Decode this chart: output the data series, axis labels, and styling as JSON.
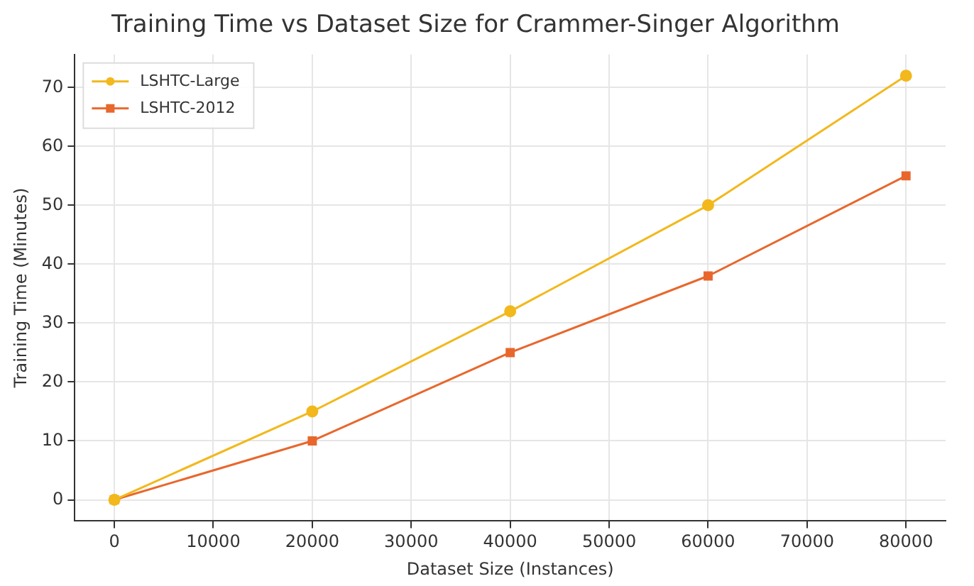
{
  "chart_data": {
    "type": "line",
    "title": "Training Time vs Dataset Size for Crammer-Singer Algorithm",
    "xlabel": "Dataset Size (Instances)",
    "ylabel": "Training Time (Minutes)",
    "x": [
      0,
      20000,
      40000,
      60000,
      80000
    ],
    "series": [
      {
        "name": "LSHTC-Large",
        "color": "#f2b81c",
        "marker": "circle",
        "values": [
          0,
          15,
          32,
          50,
          72
        ]
      },
      {
        "name": "LSHTC-2012",
        "color": "#e8672c",
        "marker": "square",
        "values": [
          0,
          10,
          25,
          38,
          55
        ]
      }
    ],
    "xlim": [
      -4000,
      84000
    ],
    "xticks": [
      0,
      10000,
      20000,
      30000,
      40000,
      50000,
      60000,
      70000,
      80000
    ],
    "ylim": [
      -3.6,
      75.6
    ],
    "yticks": [
      0,
      10,
      20,
      30,
      40,
      50,
      60,
      70
    ],
    "grid": true,
    "legend": "top left",
    "line_style": "solid"
  }
}
